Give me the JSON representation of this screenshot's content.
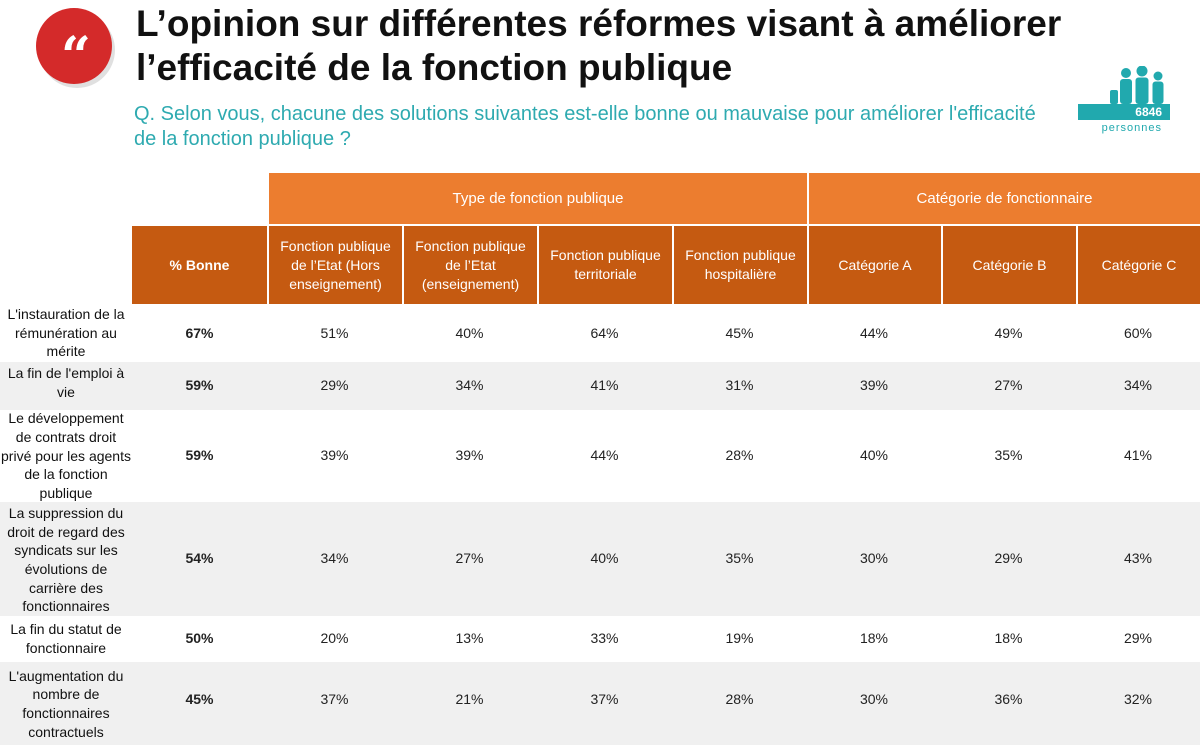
{
  "logo": {
    "glyph": "“",
    "color": "#d42a2a"
  },
  "title": "L’opinion sur différentes réformes visant à améliorer l’efficacité de la fonction publique",
  "question": "Q. Selon vous, chacune des solutions suivantes est-elle bonne ou mauvaise pour améliorer l'efficacité de la fonction publique ?",
  "sample": {
    "count": "6846",
    "unit": "personnes",
    "icon": "people-group-icon",
    "color": "#21a9ae"
  },
  "table": {
    "groups": [
      "Type de fonction publique",
      "Catégorie de fonctionnaire"
    ],
    "headers": [
      "% Bonne",
      "Fonction publique de l’Etat (Hors enseignement)",
      "Fonction publique de l’Etat (enseignement)",
      "Fonction publique territoriale",
      "Fonction publique hospitalière",
      "Catégorie A",
      "Catégorie B",
      "Catégorie C"
    ],
    "rows": [
      {
        "label": "L'instauration de la rémunération au mérite",
        "values": [
          "67%",
          "51%",
          "40%",
          "64%",
          "45%",
          "44%",
          "49%",
          "60%"
        ]
      },
      {
        "label": "La fin de l'emploi à vie",
        "values": [
          "59%",
          "29%",
          "34%",
          "41%",
          "31%",
          "39%",
          "27%",
          "34%"
        ]
      },
      {
        "label": "Le développement de contrats droit privé pour les agents de la fonction publique",
        "values": [
          "59%",
          "39%",
          "39%",
          "44%",
          "28%",
          "40%",
          "35%",
          "41%"
        ]
      },
      {
        "label": "La suppression du droit de regard des syndicats sur les évolutions de carrière des fonctionnaires",
        "values": [
          "54%",
          "34%",
          "27%",
          "40%",
          "35%",
          "30%",
          "29%",
          "43%"
        ]
      },
      {
        "label": "La fin du statut de fonctionnaire",
        "values": [
          "50%",
          "20%",
          "13%",
          "33%",
          "19%",
          "18%",
          "18%",
          "29%"
        ]
      },
      {
        "label": "L'augmentation du nombre de fonctionnaires contractuels",
        "values": [
          "45%",
          "37%",
          "21%",
          "37%",
          "28%",
          "30%",
          "36%",
          "32%"
        ]
      }
    ],
    "colors": {
      "group_header": "#ec7d2f",
      "column_header": "#c55a11",
      "alt_row": "#f0f0f0"
    }
  }
}
